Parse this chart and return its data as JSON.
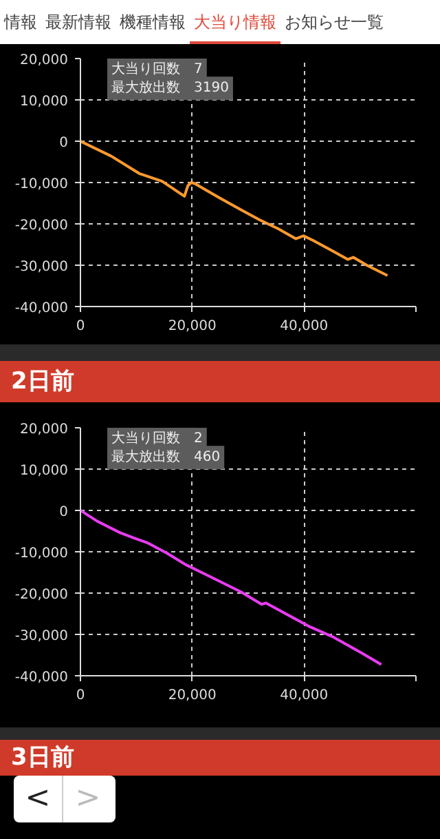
{
  "chart_data": [
    {
      "type": "line",
      "annotations": [
        "情報",
        "最新情報",
        "機種情報",
        "大当り情報",
        "お知らせ一覧",
        "大当り回数　7",
        "最大放出数　3190"
      ],
      "x": [
        0,
        5500,
        10500,
        14600,
        18600,
        19200,
        19800,
        20400,
        24600,
        28700,
        32000,
        35400,
        38500,
        39900,
        41600,
        45300,
        47800,
        48800,
        51200,
        54900
      ],
      "series": [
        {
          "color": "#ff9a2e",
          "values": [
            0,
            -3600,
            -7800,
            -9700,
            -13300,
            -10800,
            -10000,
            -10200,
            -13500,
            -16600,
            -19000,
            -21200,
            -23600,
            -22900,
            -24000,
            -26700,
            -28600,
            -28100,
            -30000,
            -32500
          ]
        }
      ],
      "xlim": [
        0,
        60000
      ],
      "ylim": [
        -40000,
        20000
      ],
      "xticks": [
        {
          "value": 0,
          "label": "0"
        },
        {
          "value": 20000,
          "label": "20,000"
        },
        {
          "value": 40000,
          "label": "40,000"
        },
        {
          "value": 60000,
          "label": null
        }
      ],
      "yticks": [
        {
          "value": -40000,
          "label": "-40,000"
        },
        {
          "value": -30000,
          "label": "-30,000"
        },
        {
          "value": -20000,
          "label": "-20,000"
        },
        {
          "value": -10000,
          "label": "-10,000"
        },
        {
          "value": 0,
          "label": "0"
        },
        {
          "value": 10000,
          "label": "10,000"
        },
        {
          "value": 20000,
          "label": "20,000"
        }
      ],
      "grid": true
    },
    {
      "type": "line",
      "title": "2日前",
      "annotations": [
        "大当り回数　2",
        "最大放出数　460",
        "3日前",
        "<",
        ">"
      ],
      "x": [
        0,
        3000,
        7100,
        9600,
        12100,
        15400,
        18800,
        22100,
        25400,
        28700,
        32400,
        33200,
        37000,
        41100,
        45300,
        50300,
        53800
      ],
      "series": [
        {
          "color": "#e83cf0",
          "values": [
            0,
            -2600,
            -5400,
            -6700,
            -7900,
            -10300,
            -13100,
            -15300,
            -17500,
            -19700,
            -22700,
            -22400,
            -25200,
            -28200,
            -30700,
            -34500,
            -37300
          ]
        }
      ],
      "xlim": [
        0,
        60000
      ],
      "ylim": [
        -40000,
        20000
      ],
      "xticks": [
        {
          "value": 0,
          "label": "0"
        },
        {
          "value": 20000,
          "label": "20,000"
        },
        {
          "value": 40000,
          "label": "40,000"
        },
        {
          "value": 60000,
          "label": null
        }
      ],
      "yticks": [
        {
          "value": -40000,
          "label": "-40,000"
        },
        {
          "value": -30000,
          "label": "-30,000"
        },
        {
          "value": -20000,
          "label": "-20,000"
        },
        {
          "value": -10000,
          "label": "-10,000"
        },
        {
          "value": 0,
          "label": "0"
        },
        {
          "value": 10000,
          "label": "10,000"
        },
        {
          "value": 20000,
          "label": "20,000"
        }
      ],
      "grid": true
    }
  ]
}
